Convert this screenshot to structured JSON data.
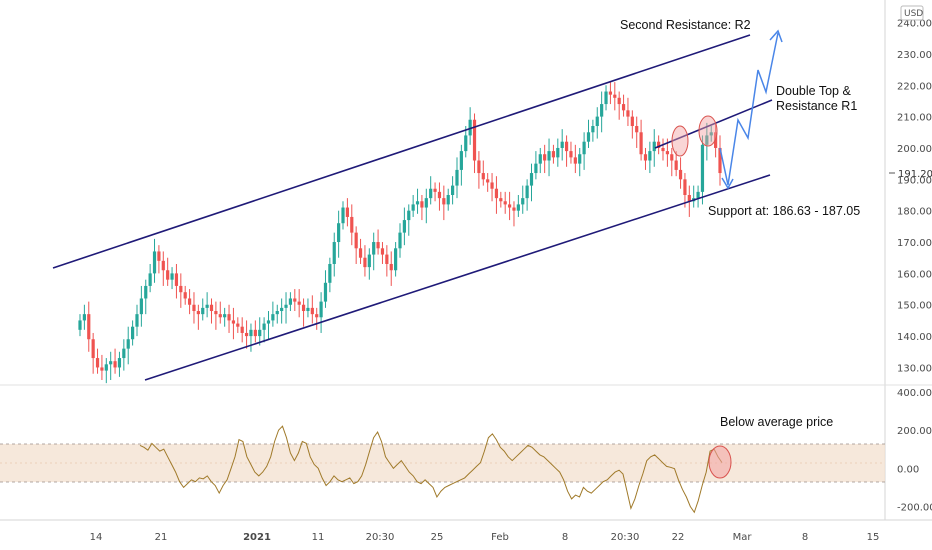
{
  "currency_badge": "USD",
  "chart_data": [
    {
      "type": "candlestick",
      "yaxis_ticks": [
        "130.00",
        "140.00",
        "150.00",
        "160.00",
        "170.00",
        "180.00",
        "190.00",
        "200.00",
        "210.00",
        "220.00",
        "230.00",
        "240.00"
      ],
      "ylim": [
        126,
        244
      ],
      "price_marker": "191.20",
      "xaxis_ticks": [
        {
          "label": "14",
          "bold": false
        },
        {
          "label": "21",
          "bold": false
        },
        {
          "label": "2021",
          "bold": true
        },
        {
          "label": "11",
          "bold": false
        },
        {
          "label": "20:30",
          "bold": false
        },
        {
          "label": "25",
          "bold": false
        },
        {
          "label": "Feb",
          "bold": false
        },
        {
          "label": "8",
          "bold": false
        },
        {
          "label": "20:30",
          "bold": false
        },
        {
          "label": "22",
          "bold": false
        },
        {
          "label": "Mar",
          "bold": false
        },
        {
          "label": "8",
          "bold": false
        },
        {
          "label": "15",
          "bold": false
        }
      ],
      "closes": [
        145,
        147,
        139,
        133,
        130,
        129,
        131,
        132,
        130,
        133,
        136,
        139,
        143,
        147,
        152,
        156,
        160,
        167,
        164,
        161,
        158,
        160,
        156,
        154,
        152,
        150,
        148,
        147,
        149,
        150,
        148,
        147,
        146,
        147,
        145,
        144,
        143,
        141,
        140,
        142,
        140,
        142,
        144,
        145,
        147,
        148,
        149,
        150,
        152,
        151,
        150,
        148,
        149,
        147,
        146,
        151,
        157,
        163,
        170,
        176,
        181,
        178,
        173,
        168,
        165,
        162,
        166,
        170,
        168,
        166,
        163,
        161,
        168,
        173,
        177,
        180,
        182,
        183,
        181,
        184,
        187,
        186,
        184,
        182,
        185,
        188,
        193,
        199,
        204,
        209,
        196,
        192,
        190,
        189,
        187,
        184,
        183,
        182,
        181,
        180,
        182,
        184,
        188,
        192,
        195,
        198,
        196,
        199,
        197,
        200,
        202,
        199,
        197,
        195,
        198,
        202,
        205,
        207,
        210,
        214,
        218,
        217,
        216,
        214,
        212,
        210,
        207,
        205,
        198,
        196,
        199,
        202,
        200,
        199,
        198,
        196,
        193,
        190,
        185,
        183,
        184,
        186,
        201,
        204,
        205,
        200,
        192
      ],
      "annotations": [
        {
          "text": "Second Resistance: R2"
        },
        {
          "text": "Double Top &"
        },
        {
          "text": "Resistance R1"
        },
        {
          "text": "Support at: 186.63 - 187.05"
        }
      ]
    },
    {
      "type": "line",
      "name": "",
      "yaxis_ticks": [
        "400.00",
        "200.00",
        "0.00",
        "-200.00"
      ],
      "ylim": [
        -260,
        420
      ],
      "band": [
        -100,
        100
      ],
      "values": [
        120,
        110,
        95,
        130,
        110,
        90,
        100,
        60,
        20,
        -20,
        -70,
        -100,
        -80,
        -60,
        -70,
        -50,
        -55,
        -40,
        -70,
        -90,
        -130,
        -90,
        -60,
        0,
        60,
        150,
        140,
        60,
        20,
        -20,
        -40,
        -20,
        10,
        60,
        140,
        200,
        220,
        160,
        80,
        40,
        80,
        140,
        130,
        60,
        20,
        0,
        -50,
        -90,
        -70,
        -40,
        -60,
        -70,
        -60,
        -50,
        -80,
        -70,
        -40,
        20,
        90,
        160,
        190,
        140,
        60,
        30,
        0,
        20,
        40,
        10,
        -20,
        -40,
        -70,
        -80,
        -60,
        -80,
        -100,
        -150,
        -120,
        -100,
        -90,
        -80,
        -70,
        -60,
        -50,
        -30,
        -10,
        10,
        30,
        90,
        160,
        180,
        150,
        110,
        90,
        60,
        40,
        60,
        80,
        100,
        120,
        110,
        90,
        70,
        60,
        40,
        20,
        0,
        -20,
        -60,
        -120,
        -160,
        -140,
        -150,
        -100,
        -120,
        -130,
        -110,
        -90,
        -70,
        -60,
        -40,
        -20,
        -10,
        -30,
        -120,
        -210,
        -160,
        -90,
        -30,
        40,
        60,
        70,
        50,
        30,
        10,
        5,
        -2,
        -60,
        -110,
        -150,
        -200,
        -230,
        -170,
        -90,
        -20,
        90,
        100,
        60,
        30
      ]
    }
  ]
}
